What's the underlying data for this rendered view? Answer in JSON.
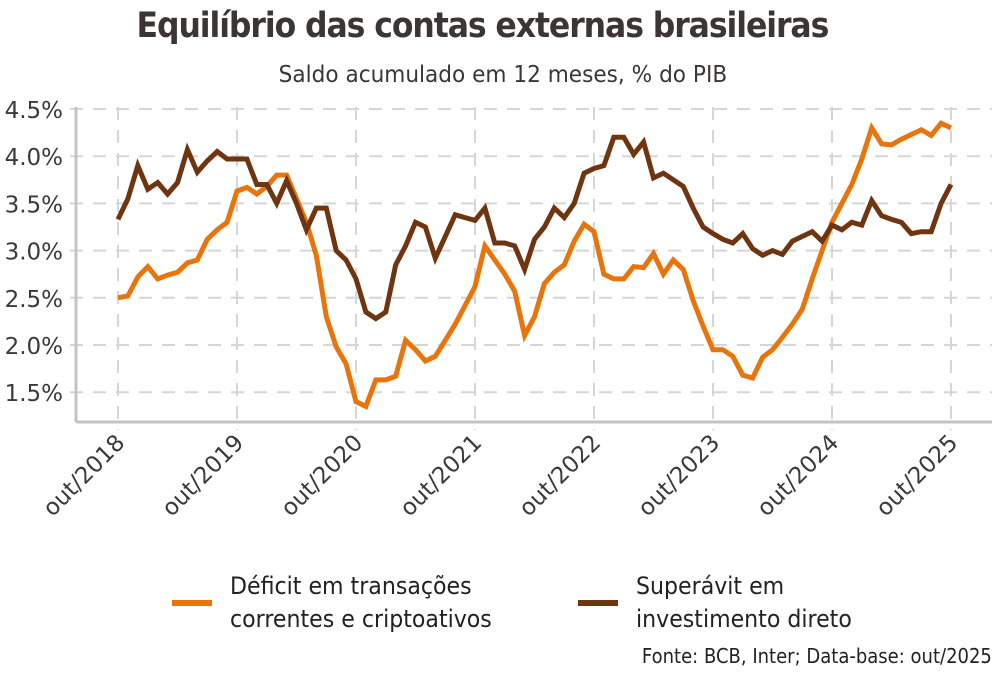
{
  "chart_data": {
    "type": "line",
    "title": "Equilíbrio das contas externas brasileiras",
    "subtitle": "Saldo acumulado em 12 meses, % do PIB",
    "xlabel": "",
    "ylabel": "",
    "ylim": [
      1.2,
      4.5
    ],
    "yticks": [
      1.5,
      2.0,
      2.5,
      3.0,
      3.5,
      4.0,
      4.5
    ],
    "ytick_labels": [
      "1.5%",
      "2.0%",
      "2.5%",
      "3.0%",
      "3.5%",
      "4.0%",
      "4.5%"
    ],
    "xtick_labels": [
      "out/2018",
      "out/2019",
      "out/2020",
      "out/2021",
      "out/2022",
      "out/2023",
      "out/2024",
      "out/2025"
    ],
    "x_start": "out/2018",
    "x_unit": "month",
    "grid": true,
    "legend_position": "bottom",
    "source": "Fonte: BCB, Inter; Data-base: out/2025",
    "series": [
      {
        "name": "Déficit em transações correntes e criptoativos",
        "legend_lines": [
          "Déficit em transações",
          "correntes e criptoativos"
        ],
        "color": "#e8740c",
        "values": [
          2.5,
          2.52,
          2.72,
          2.83,
          2.7,
          2.74,
          2.77,
          2.87,
          2.9,
          3.12,
          3.22,
          3.3,
          3.63,
          3.67,
          3.6,
          3.68,
          3.8,
          3.8,
          3.55,
          3.3,
          2.95,
          2.3,
          1.98,
          1.8,
          1.4,
          1.35,
          1.63,
          1.63,
          1.67,
          2.05,
          1.95,
          1.83,
          1.88,
          2.05,
          2.22,
          2.42,
          2.62,
          3.05,
          2.9,
          2.75,
          2.57,
          2.1,
          2.3,
          2.65,
          2.77,
          2.85,
          3.1,
          3.28,
          3.2,
          2.75,
          2.7,
          2.7,
          2.83,
          2.82,
          2.97,
          2.75,
          2.9,
          2.8,
          2.47,
          2.2,
          1.95,
          1.95,
          1.88,
          1.68,
          1.65,
          1.87,
          1.95,
          2.08,
          2.22,
          2.38,
          2.7,
          3.0,
          3.3,
          3.5,
          3.7,
          3.97,
          4.3,
          4.13,
          4.12,
          4.18,
          4.23,
          4.28,
          4.22,
          4.35,
          4.3
        ]
      },
      {
        "name": "Superávit em investimento direto",
        "legend_lines": [
          "Superávit em",
          "investimento direto"
        ],
        "color": "#6e3510",
        "values": [
          3.33,
          3.55,
          3.9,
          3.65,
          3.72,
          3.6,
          3.72,
          4.07,
          3.83,
          3.95,
          4.05,
          3.97,
          3.97,
          3.97,
          3.7,
          3.7,
          3.5,
          3.74,
          3.5,
          3.22,
          3.45,
          3.45,
          3.0,
          2.9,
          2.7,
          2.35,
          2.28,
          2.35,
          2.85,
          3.05,
          3.3,
          3.25,
          2.92,
          3.15,
          3.38,
          3.35,
          3.32,
          3.45,
          3.08,
          3.08,
          3.05,
          2.8,
          3.12,
          3.25,
          3.45,
          3.35,
          3.5,
          3.82,
          3.87,
          3.9,
          4.2,
          4.2,
          4.02,
          4.15,
          3.77,
          3.82,
          3.75,
          3.68,
          3.45,
          3.25,
          3.18,
          3.12,
          3.08,
          3.18,
          3.02,
          2.95,
          3.0,
          2.96,
          3.1,
          3.15,
          3.2,
          3.1,
          3.27,
          3.22,
          3.3,
          3.27,
          3.53,
          3.37,
          3.33,
          3.3,
          3.18,
          3.2,
          3.2,
          3.5,
          3.7
        ]
      }
    ]
  }
}
